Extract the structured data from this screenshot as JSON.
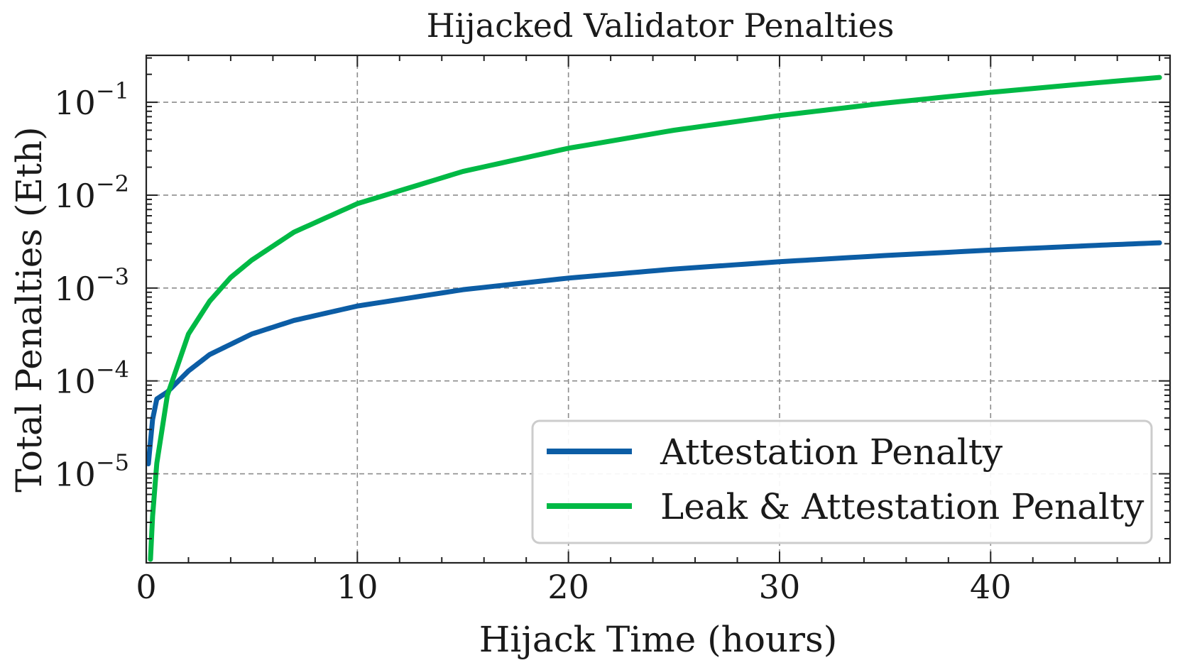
{
  "chart_data": {
    "type": "line",
    "title": "Hijacked Validator Penalties",
    "xlabel": "Hijack Time (hours)",
    "ylabel": "Total Penalties (Eth)",
    "xlim": [
      0,
      48.5
    ],
    "ylim": [
      1.1e-06,
      0.32
    ],
    "yscale": "log",
    "grid": true,
    "legend_position": "lower-right",
    "x_ticks": [
      {
        "value": 0,
        "label": "0"
      },
      {
        "value": 10,
        "label": "10"
      },
      {
        "value": 20,
        "label": "20"
      },
      {
        "value": 30,
        "label": "30"
      },
      {
        "value": 40,
        "label": "40"
      }
    ],
    "y_ticks": [
      {
        "value": 1e-05,
        "base": "10",
        "exp": "−5"
      },
      {
        "value": 0.0001,
        "base": "10",
        "exp": "−4"
      },
      {
        "value": 0.001,
        "base": "10",
        "exp": "−3"
      },
      {
        "value": 0.01,
        "base": "10",
        "exp": "−2"
      },
      {
        "value": 0.1,
        "base": "10",
        "exp": "−1"
      }
    ],
    "series": [
      {
        "name": "Attestation Penalty",
        "color": "#0c5da5",
        "x": [
          0.1,
          0.3,
          0.5,
          1,
          2,
          3,
          5,
          7,
          10,
          15,
          20,
          25,
          30,
          35,
          40,
          45,
          48
        ],
        "y": [
          1.28e-05,
          3.84e-05,
          6.4e-05,
          7.6e-05,
          0.000128,
          0.000192,
          0.00032,
          0.000448,
          0.00064,
          0.00096,
          0.00128,
          0.0016,
          0.00192,
          0.00224,
          0.00256,
          0.00288,
          0.00307
        ]
      },
      {
        "name": "Leak & Attestation Penalty",
        "color": "#00b945",
        "x": [
          0.2,
          0.3,
          0.5,
          1,
          2,
          3,
          4,
          5,
          7,
          10,
          15,
          20,
          25,
          30,
          35,
          40,
          45,
          48
        ],
        "y": [
          1.2e-06,
          3.5e-06,
          1.3e-05,
          7e-05,
          0.00032,
          0.00072,
          0.0013,
          0.002,
          0.004,
          0.0081,
          0.018,
          0.032,
          0.05,
          0.072,
          0.098,
          0.128,
          0.162,
          0.185
        ]
      }
    ]
  }
}
